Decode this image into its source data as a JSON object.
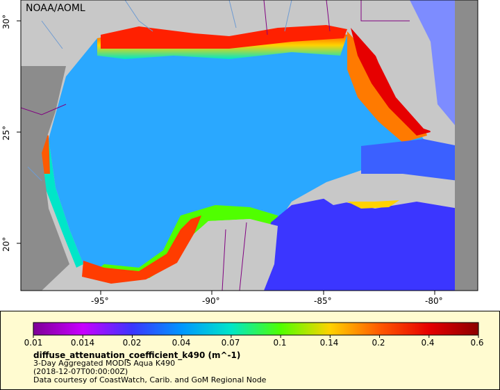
{
  "logo_text": "NOAA/AOML",
  "x_tick_labels": [
    "-95°",
    "-90°",
    "-85°",
    "-80°"
  ],
  "y_tick_labels": [
    "30°",
    "25°",
    "20°"
  ],
  "colorbar": {
    "labels": [
      "0.01",
      "0.014",
      "0.02",
      "0.04",
      "0.07",
      "0.1",
      "0.14",
      "0.2",
      "0.4",
      "0.6"
    ],
    "colors": [
      "#7d0096",
      "#c800ff",
      "#3b36ff",
      "#0096ff",
      "#00e6c8",
      "#50ff00",
      "#ffd200",
      "#ff5a00",
      "#e60000",
      "#8c0000"
    ]
  },
  "legend": {
    "variable": "diffuse_attenuation_coefficient_k490 (m^-1)",
    "dataset": "3-Day Aggregated MODIS Aqua K490",
    "time": "(2018-12-07T00:00:00Z)",
    "credit": "Data courtesy of CoastWatch, Carib. and GoM Regional Node"
  },
  "colors": {
    "land": "#c8c8c8",
    "no_data": "#8c8c8c",
    "panel_bg": "#fffbd0",
    "border_line": "#800080",
    "river": "#6e9bd2"
  }
}
